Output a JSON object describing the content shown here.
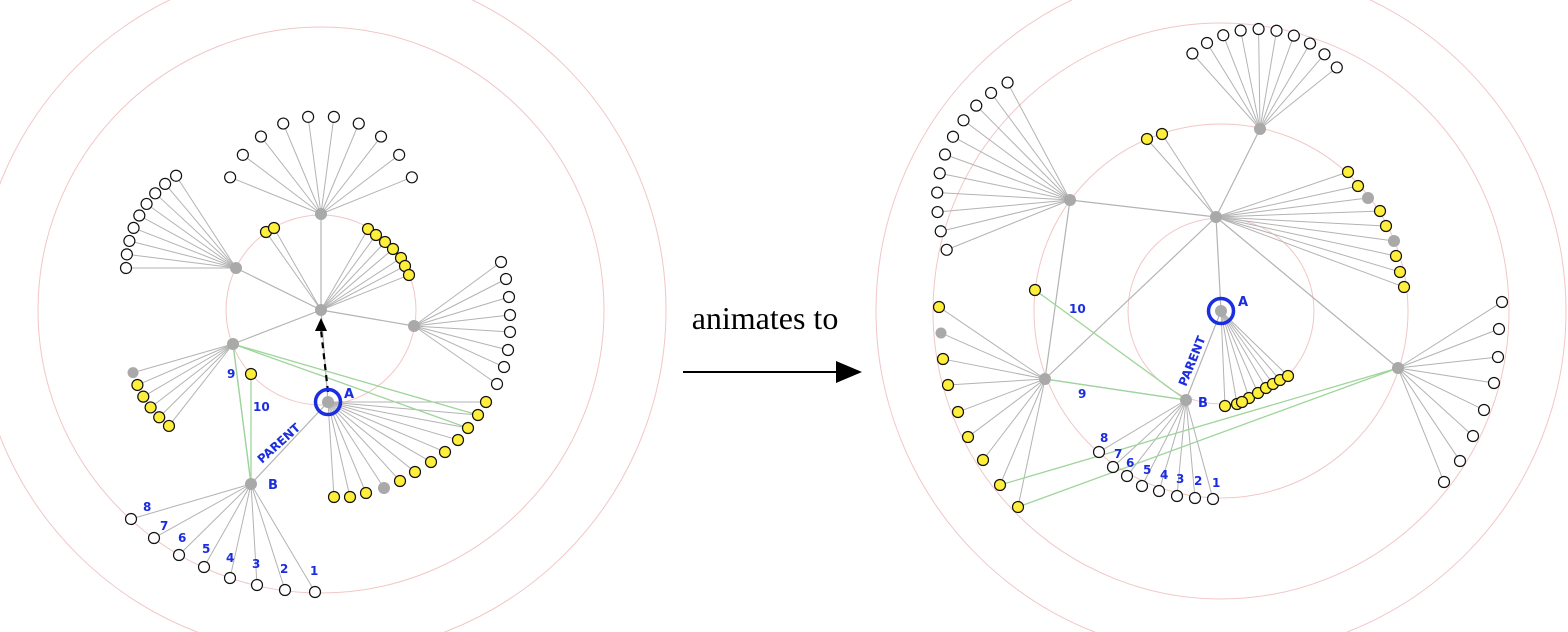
{
  "caption": "animates to",
  "colors": {
    "ring": "#f2c6c6",
    "edge": "#b3b3b3",
    "link": "#9ed59a",
    "label": "#1a2de0",
    "focus": "#1a2de0",
    "yellow_fill": "#ffef3a",
    "hub": "#a9a9a9",
    "arrow": "#000000"
  },
  "labels": {
    "a": "A",
    "b": "B",
    "parent": "PARENT",
    "nine": "9",
    "ten": "10",
    "numbers": [
      "1",
      "2",
      "3",
      "4",
      "5",
      "6",
      "7",
      "8"
    ]
  }
}
